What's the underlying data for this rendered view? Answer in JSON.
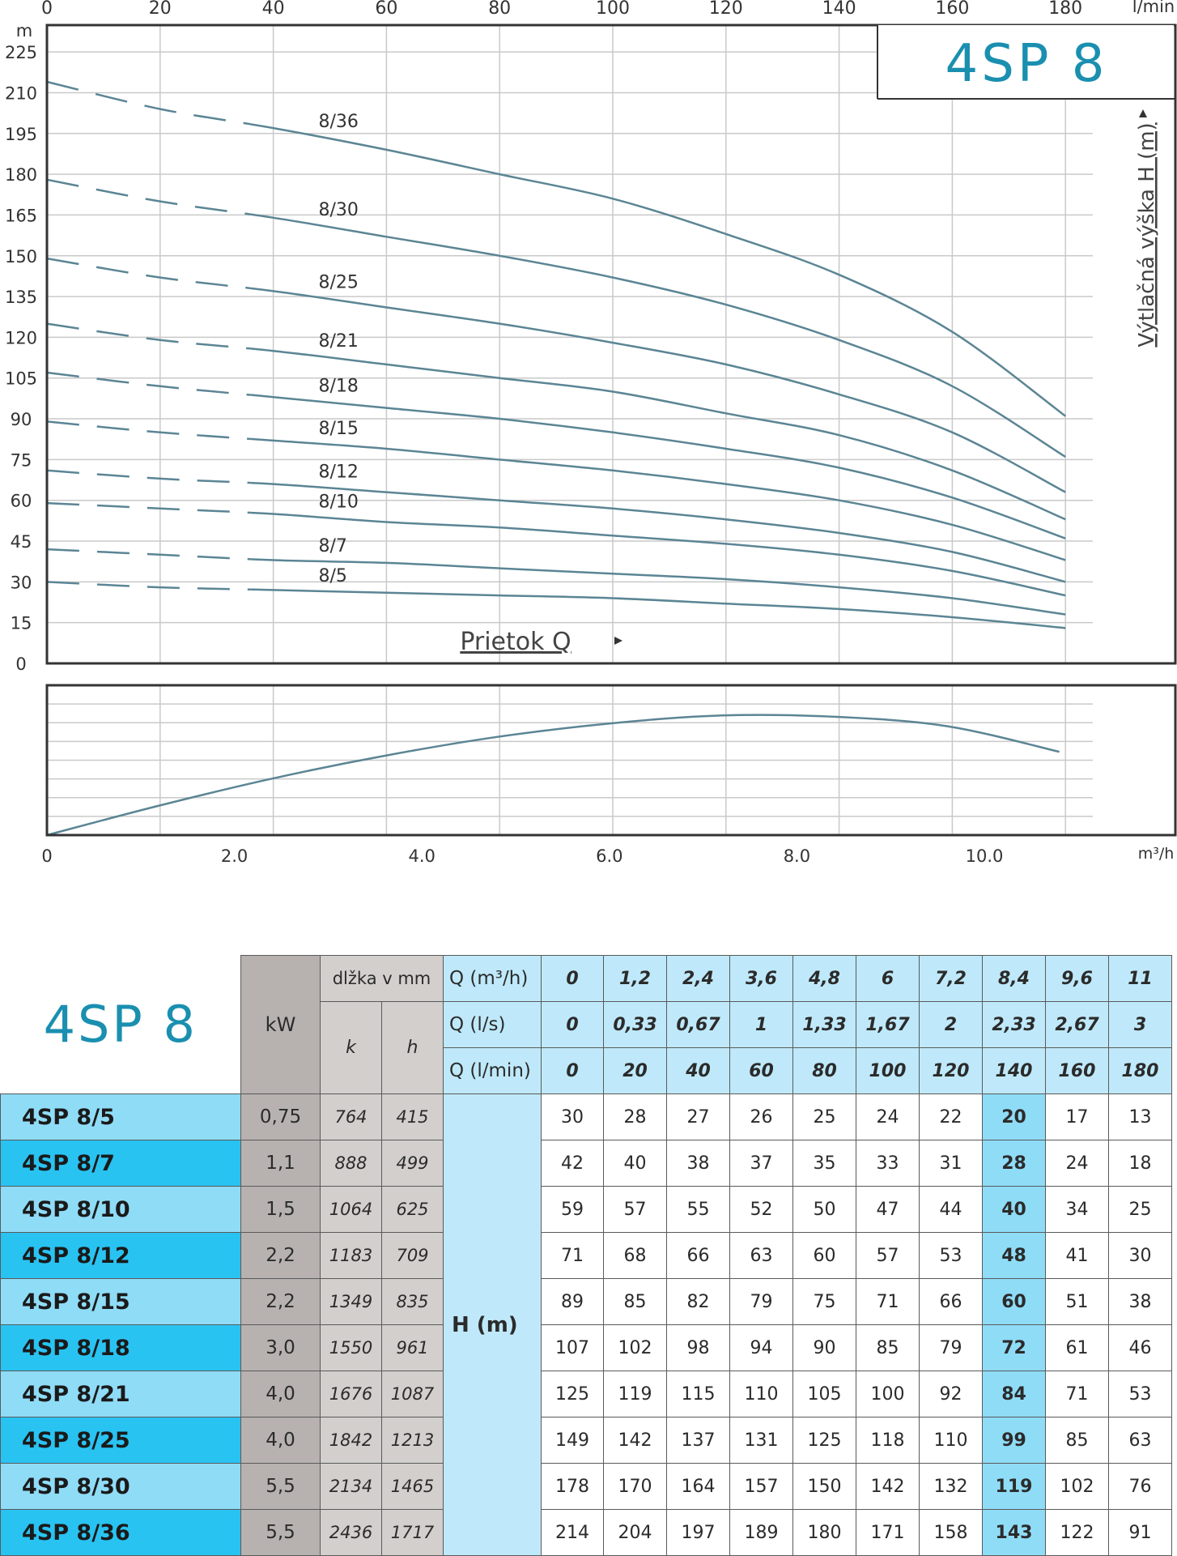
{
  "chart_data": [
    {
      "type": "line",
      "title": "4SP 8",
      "xlabel": "Prietok Q",
      "ylabel": "Výtlačná výška H (m)",
      "x_unit": "l/min",
      "y_unit": "m",
      "xlim": [
        0,
        200
      ],
      "ylim": [
        0,
        240
      ],
      "x_ticks": [
        "0",
        "20",
        "40",
        "60",
        "80",
        "100",
        "120",
        "140",
        "160",
        "180"
      ],
      "y_ticks": [
        "0",
        "15",
        "30",
        "45",
        "60",
        "75",
        "90",
        "105",
        "120",
        "135",
        "150",
        "165",
        "180",
        "195",
        "210",
        "225"
      ],
      "grid": true,
      "dashed_until_x": 36,
      "x": [
        0,
        20,
        40,
        60,
        80,
        100,
        120,
        140,
        160,
        180
      ],
      "series": [
        {
          "name": "8/36",
          "values": [
            214,
            204,
            197,
            189,
            180,
            171,
            158,
            143,
            122,
            91
          ]
        },
        {
          "name": "8/30",
          "values": [
            178,
            170,
            164,
            157,
            150,
            142,
            132,
            119,
            102,
            76
          ]
        },
        {
          "name": "8/25",
          "values": [
            149,
            142,
            137,
            131,
            125,
            118,
            110,
            99,
            85,
            63
          ]
        },
        {
          "name": "8/21",
          "values": [
            125,
            119,
            115,
            110,
            105,
            100,
            92,
            84,
            71,
            53
          ]
        },
        {
          "name": "8/18",
          "values": [
            107,
            102,
            98,
            94,
            90,
            85,
            79,
            72,
            61,
            46
          ]
        },
        {
          "name": "8/15",
          "values": [
            89,
            85,
            82,
            79,
            75,
            71,
            66,
            60,
            51,
            38
          ]
        },
        {
          "name": "8/12",
          "values": [
            71,
            68,
            66,
            63,
            60,
            57,
            53,
            48,
            41,
            30
          ]
        },
        {
          "name": "8/10",
          "values": [
            59,
            57,
            55,
            52,
            50,
            47,
            44,
            40,
            34,
            25
          ]
        },
        {
          "name": "8/7",
          "values": [
            42,
            40,
            38,
            37,
            35,
            33,
            31,
            28,
            24,
            18
          ]
        },
        {
          "name": "8/5",
          "values": [
            30,
            28,
            27,
            26,
            25,
            24,
            22,
            20,
            17,
            13
          ]
        }
      ],
      "colors": {
        "curve": "#5b8594",
        "grid": "#c9c9c9",
        "frame": "#333333"
      }
    },
    {
      "type": "line",
      "x_unit": "m³/h",
      "xlim": [
        0,
        12.5
      ],
      "x_ticks": [
        "0",
        "2.0",
        "4.0",
        "6.0",
        "8.0",
        "10.0"
      ],
      "grid": true,
      "x": [
        0,
        1.2,
        2.4,
        3.6,
        4.8,
        6,
        7.2,
        8.4,
        9.6,
        10.8
      ],
      "series": [
        {
          "values": [
            0,
            0.22,
            0.42,
            0.59,
            0.73,
            0.83,
            0.89,
            0.88,
            0.81,
            0.62
          ]
        }
      ]
    }
  ],
  "table": {
    "logo": "4SP 8",
    "kw_header": "kW",
    "length_header": "dlžka v mm",
    "k_header": "k",
    "h_header": "h",
    "q_rows": [
      {
        "label": "Q (m³/h)",
        "values": [
          "0",
          "1,2",
          "2,4",
          "3,6",
          "4,8",
          "6",
          "7,2",
          "8,4",
          "9,6",
          "11"
        ]
      },
      {
        "label": "Q (l/s)",
        "values": [
          "0",
          "0,33",
          "0,67",
          "1",
          "1,33",
          "1,67",
          "2",
          "2,33",
          "2,67",
          "3"
        ]
      },
      {
        "label": "Q (l/min)",
        "values": [
          "0",
          "20",
          "40",
          "60",
          "80",
          "100",
          "120",
          "140",
          "160",
          "180"
        ]
      }
    ],
    "h_label": "H  (m)",
    "rows": [
      {
        "model": "4SP 8/5",
        "kw": "0,75",
        "k": "764",
        "h": "415",
        "values": [
          "30",
          "28",
          "27",
          "26",
          "25",
          "24",
          "22",
          "20",
          "17",
          "13"
        ]
      },
      {
        "model": "4SP 8/7",
        "kw": "1,1",
        "k": "888",
        "h": "499",
        "values": [
          "42",
          "40",
          "38",
          "37",
          "35",
          "33",
          "31",
          "28",
          "24",
          "18"
        ]
      },
      {
        "model": "4SP 8/10",
        "kw": "1,5",
        "k": "1064",
        "h": "625",
        "values": [
          "59",
          "57",
          "55",
          "52",
          "50",
          "47",
          "44",
          "40",
          "34",
          "25"
        ]
      },
      {
        "model": "4SP 8/12",
        "kw": "2,2",
        "k": "1183",
        "h": "709",
        "values": [
          "71",
          "68",
          "66",
          "63",
          "60",
          "57",
          "53",
          "48",
          "41",
          "30"
        ]
      },
      {
        "model": "4SP 8/15",
        "kw": "2,2",
        "k": "1349",
        "h": "835",
        "values": [
          "89",
          "85",
          "82",
          "79",
          "75",
          "71",
          "66",
          "60",
          "51",
          "38"
        ]
      },
      {
        "model": "4SP 8/18",
        "kw": "3,0",
        "k": "1550",
        "h": "961",
        "values": [
          "107",
          "102",
          "98",
          "94",
          "90",
          "85",
          "79",
          "72",
          "61",
          "46"
        ]
      },
      {
        "model": "4SP 8/21",
        "kw": "4,0",
        "k": "1676",
        "h": "1087",
        "values": [
          "125",
          "119",
          "115",
          "110",
          "105",
          "100",
          "92",
          "84",
          "71",
          "53"
        ]
      },
      {
        "model": "4SP 8/25",
        "kw": "4,0",
        "k": "1842",
        "h": "1213",
        "values": [
          "149",
          "142",
          "137",
          "131",
          "125",
          "118",
          "110",
          "99",
          "85",
          "63"
        ]
      },
      {
        "model": "4SP 8/30",
        "kw": "5,5",
        "k": "2134",
        "h": "1465",
        "values": [
          "178",
          "170",
          "164",
          "157",
          "150",
          "142",
          "132",
          "119",
          "102",
          "76"
        ]
      },
      {
        "model": "4SP 8/36",
        "kw": "5,5",
        "k": "2436",
        "h": "1717",
        "values": [
          "214",
          "204",
          "197",
          "189",
          "180",
          "171",
          "158",
          "143",
          "122",
          "91"
        ]
      }
    ],
    "highlight_column": 7,
    "colors": {
      "light_blue": "#8fdcf7",
      "dark_blue": "#29c3f2",
      "q_blue": "#bfe9fa",
      "kw_grey": "#b7b2b0",
      "len_grey": "#d2cfcd",
      "logo": "#1a8fb0"
    }
  }
}
